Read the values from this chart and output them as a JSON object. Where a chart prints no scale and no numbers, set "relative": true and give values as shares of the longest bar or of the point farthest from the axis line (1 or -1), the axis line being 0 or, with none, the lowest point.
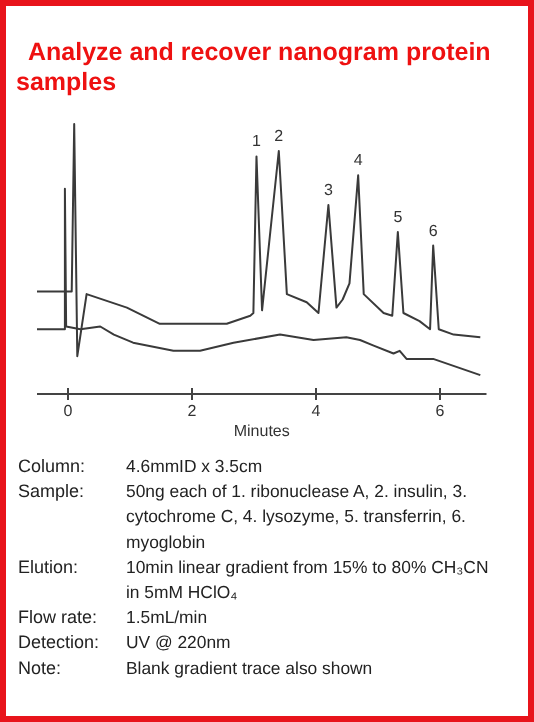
{
  "chart_data": {
    "type": "line",
    "title": "Analyze and recover nanogram protein samples",
    "xlabel": "Minutes",
    "relative": true,
    "xlim": [
      -0.5,
      6.75
    ],
    "xticks": [
      0,
      2,
      4,
      6
    ],
    "tick_labels": "x",
    "line_style": "solid",
    "series": [
      {
        "color": "#3a3a3a",
        "x": [
          -0.5,
          0.06,
          0.1,
          0.15,
          0.3,
          0.95,
          1.48,
          2.56,
          2.94,
          2.99,
          3.04,
          3.13,
          3.4,
          3.53,
          3.85,
          4.04,
          4.2,
          4.33,
          4.43,
          4.54,
          4.68,
          4.77,
          5.09,
          5.23,
          5.32,
          5.41,
          5.67,
          5.84,
          5.89,
          5.98,
          6.22,
          6.65
        ],
        "values": [
          0.38,
          0.38,
          1.0,
          0.14,
          0.37,
          0.32,
          0.26,
          0.26,
          0.29,
          0.3,
          0.88,
          0.31,
          0.9,
          0.37,
          0.34,
          0.3,
          0.7,
          0.32,
          0.35,
          0.41,
          0.81,
          0.37,
          0.3,
          0.29,
          0.6,
          0.3,
          0.27,
          0.24,
          0.55,
          0.24,
          0.22,
          0.21
        ]
      },
      {
        "color": "#3a3a3a",
        "x": [
          -0.5,
          -0.05,
          -0.05,
          -0.03,
          0.2,
          0.52,
          0.74,
          1.05,
          1.7,
          2.13,
          2.67,
          3.42,
          3.96,
          4.49,
          4.71,
          4.92,
          5.25,
          5.35,
          5.46,
          5.89,
          6.65
        ],
        "values": [
          0.24,
          0.24,
          0.76,
          0.25,
          0.24,
          0.25,
          0.22,
          0.19,
          0.16,
          0.16,
          0.19,
          0.22,
          0.2,
          0.21,
          0.2,
          0.18,
          0.15,
          0.16,
          0.13,
          0.13,
          0.07
        ]
      }
    ],
    "annotations": [
      {
        "text": "1",
        "x": 3.04,
        "y": 0.88
      },
      {
        "text": "2",
        "x": 3.4,
        "y": 0.9
      },
      {
        "text": "3",
        "x": 4.2,
        "y": 0.7
      },
      {
        "text": "4",
        "x": 4.68,
        "y": 0.81
      },
      {
        "text": "5",
        "x": 5.32,
        "y": 0.6
      },
      {
        "text": "6",
        "x": 5.89,
        "y": 0.55
      },
      "Column: 4.6mmID x 3.5cm",
      "Sample: 50ng each of 1. ribonuclease A, 2. insulin, 3. cytochrome C, 4. lysozyme, 5. transferrin, 6. myoglobin",
      "Elution: 10min linear gradient from 15% to 80% CH₃CN in 5mM HClO₄",
      "Flow rate: 1.5mL/min",
      "Detection: UV @ 220nm",
      "Note: Blank gradient trace also shown"
    ]
  }
}
